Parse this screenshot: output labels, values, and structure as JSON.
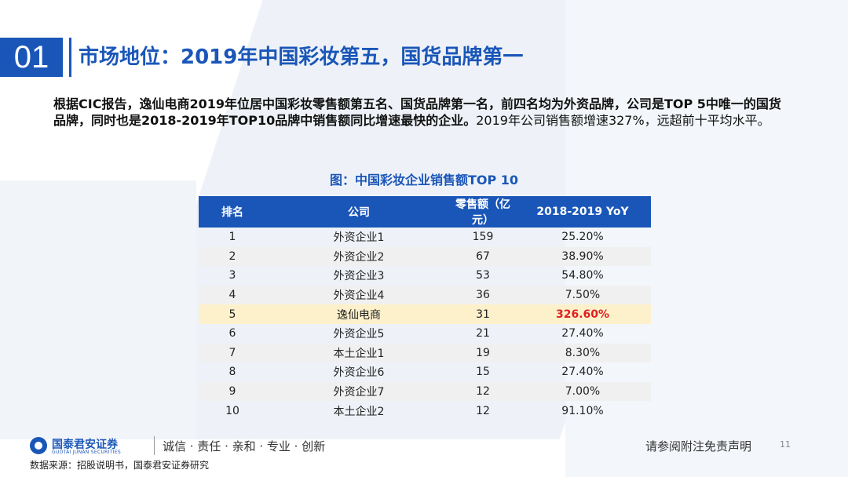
{
  "header": {
    "section_number": "01",
    "title": "市场地位：2019年中国彩妆第五，国货品牌第一"
  },
  "body": {
    "bold_text": "根据CIC报告，逸仙电商2019年位居中国彩妆零售额第五名、国货品牌第一名，前四名均为外资品牌，公司是TOP 5中唯一的国货品牌，同时也是2018-2019年TOP10品牌中销售额同比增速最快的企业。",
    "normal_text": "2019年公司销售额增速327%，远超前十平均水平。"
  },
  "table": {
    "title": "图：中国彩妆企业销售额TOP 10",
    "headers": [
      "排名",
      "公司",
      "零售额（亿元）",
      "2018-2019 YoY"
    ],
    "rows": [
      {
        "rank": "1",
        "company": "外资企业1",
        "sales": "159",
        "yoy": "25.20%"
      },
      {
        "rank": "2",
        "company": "外资企业2",
        "sales": "67",
        "yoy": "38.90%"
      },
      {
        "rank": "3",
        "company": "外资企业3",
        "sales": "53",
        "yoy": "54.80%"
      },
      {
        "rank": "4",
        "company": "外资企业4",
        "sales": "36",
        "yoy": "7.50%"
      },
      {
        "rank": "5",
        "company": "逸仙电商",
        "sales": "31",
        "yoy": "326.60%"
      },
      {
        "rank": "6",
        "company": "外资企业5",
        "sales": "21",
        "yoy": "27.40%"
      },
      {
        "rank": "7",
        "company": "本土企业1",
        "sales": "19",
        "yoy": "8.30%"
      },
      {
        "rank": "8",
        "company": "外资企业6",
        "sales": "15",
        "yoy": "27.40%"
      },
      {
        "rank": "9",
        "company": "外资企业7",
        "sales": "12",
        "yoy": "7.00%"
      },
      {
        "rank": "10",
        "company": "本土企业2",
        "sales": "12",
        "yoy": "91.10%"
      }
    ],
    "highlight_row": 5,
    "highlight_color": "#fdf1cc",
    "highlight_text_color": "#e02020"
  },
  "footer": {
    "logo_name": "国泰君安证券",
    "logo_en": "GUOTAI JUNAN SECURITIES",
    "slogan": "诚信 · 责任 · 亲和 · 专业 · 创新",
    "disclaimer": "请参阅附注免责声明",
    "page_number": "11",
    "source": "数据来源：招股说明书，国泰君安证券研究"
  },
  "colors": {
    "accent": "#1a56b8"
  }
}
